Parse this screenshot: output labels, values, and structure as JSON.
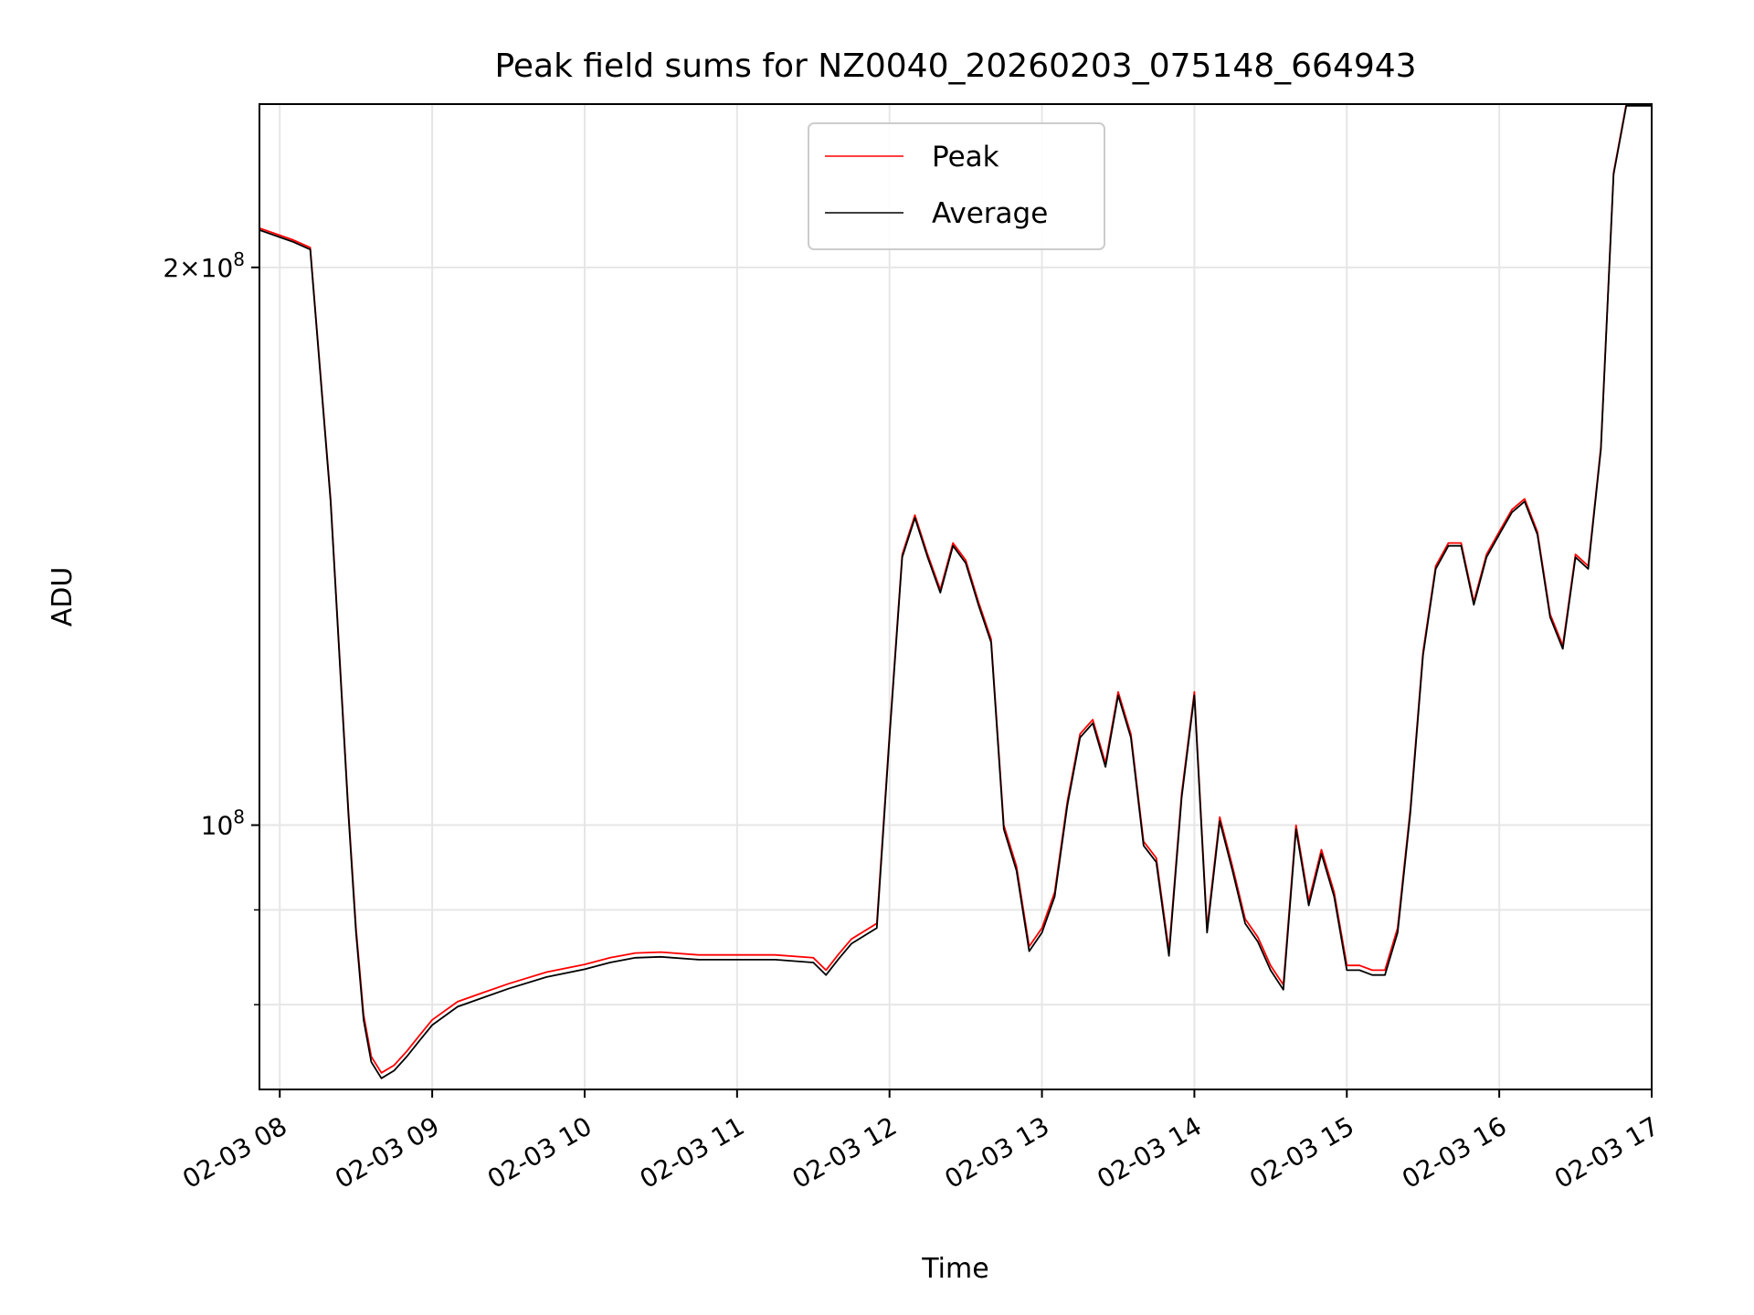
{
  "chart_data": {
    "type": "line",
    "title": "Peak field sums for NZ0040_20260203_075148_664943",
    "xlabel": "Time",
    "ylabel": "ADU",
    "y_scale": "log",
    "ylim": [
      72000000,
      245000000
    ],
    "xlim": [
      "02-03 07:52",
      "02-03 17:00"
    ],
    "x_ticks": [
      "02-03 08",
      "02-03 09",
      "02-03 10",
      "02-03 11",
      "02-03 12",
      "02-03 13",
      "02-03 14",
      "02-03 15",
      "02-03 16",
      "02-03 17"
    ],
    "y_tick_labels": [
      {
        "value": 100000000,
        "label": "10^8"
      },
      {
        "value": 200000000,
        "label": "2×10^8"
      }
    ],
    "y_minor_ticks": [
      80000000,
      90000000
    ],
    "grid": true,
    "legend_position": "upper center",
    "x": [
      "07:52",
      "08:05",
      "08:12",
      "08:20",
      "08:27",
      "08:30",
      "08:33",
      "08:36",
      "08:40",
      "08:45",
      "08:50",
      "08:55",
      "09:00",
      "09:10",
      "09:20",
      "09:30",
      "09:45",
      "10:00",
      "10:10",
      "10:20",
      "10:30",
      "10:45",
      "11:00",
      "11:15",
      "11:30",
      "11:35",
      "11:40",
      "11:45",
      "11:55",
      "12:00",
      "12:05",
      "12:10",
      "12:15",
      "12:20",
      "12:25",
      "12:30",
      "12:35",
      "12:40",
      "12:45",
      "12:50",
      "12:55",
      "13:00",
      "13:05",
      "13:10",
      "13:15",
      "13:20",
      "13:25",
      "13:30",
      "13:35",
      "13:40",
      "13:45",
      "13:50",
      "13:55",
      "14:00",
      "14:05",
      "14:10",
      "14:15",
      "14:20",
      "14:25",
      "14:30",
      "14:35",
      "14:40",
      "14:45",
      "14:50",
      "14:55",
      "15:00",
      "15:05",
      "15:10",
      "15:15",
      "15:20",
      "15:25",
      "15:30",
      "15:35",
      "15:40",
      "15:45",
      "15:50",
      "15:55",
      "16:00",
      "16:05",
      "16:10",
      "16:15",
      "16:20",
      "16:25",
      "16:30",
      "16:35",
      "16:40",
      "16:45",
      "16:50",
      "16:55",
      "17:00"
    ],
    "series": [
      {
        "name": "Peak",
        "color": "#ff0000",
        "values": [
          210000000,
          207000000,
          205000000,
          150000000,
          102000000,
          88000000,
          79000000,
          75000000,
          73500000,
          74200000,
          75500000,
          77000000,
          78500000,
          80300000,
          81200000,
          82100000,
          83300000,
          84100000,
          84800000,
          85300000,
          85400000,
          85100000,
          85100000,
          85100000,
          84800000,
          83500000,
          85200000,
          86800000,
          88500000,
          112000000,
          140000000,
          147000000,
          140000000,
          134000000,
          142000000,
          139000000,
          132000000,
          126000000,
          100000000,
          95000000,
          86000000,
          88000000,
          92000000,
          103000000,
          112000000,
          114000000,
          108000000,
          118000000,
          112000000,
          98000000,
          96000000,
          85500000,
          104000000,
          118000000,
          88000000,
          101000000,
          95000000,
          89000000,
          87000000,
          84000000,
          82000000,
          100000000,
          91000000,
          97000000,
          92000000,
          84000000,
          84000000,
          83500000,
          83500000,
          88000000,
          102000000,
          124000000,
          138000000,
          142000000,
          142000000,
          132000000,
          140000000,
          144000000,
          148000000,
          150000000,
          144000000,
          130000000,
          125000000,
          140000000,
          138000000,
          160000000,
          225000000,
          245000000,
          245000000,
          245000000
        ]
      },
      {
        "name": "Average",
        "color": "#000000",
        "values": [
          209500000,
          206500000,
          204500000,
          149500000,
          101500000,
          87500000,
          78500000,
          74500000,
          73000000,
          73700000,
          75000000,
          76500000,
          78000000,
          79800000,
          80700000,
          81600000,
          82800000,
          83600000,
          84300000,
          84800000,
          84900000,
          84600000,
          84600000,
          84600000,
          84300000,
          83000000,
          84700000,
          86300000,
          88000000,
          111500000,
          139500000,
          146500000,
          139500000,
          133500000,
          141500000,
          138500000,
          131500000,
          125500000,
          99500000,
          94500000,
          85500000,
          87500000,
          91500000,
          102500000,
          111500000,
          113500000,
          107500000,
          117500000,
          111500000,
          97500000,
          95500000,
          85000000,
          103500000,
          117500000,
          87500000,
          100500000,
          94500000,
          88500000,
          86500000,
          83500000,
          81500000,
          99500000,
          90500000,
          96500000,
          91500000,
          83500000,
          83500000,
          83000000,
          83000000,
          87500000,
          101500000,
          123500000,
          137500000,
          141500000,
          141500000,
          131500000,
          139500000,
          143500000,
          147500000,
          149500000,
          143500000,
          129500000,
          124500000,
          139500000,
          137500000,
          159500000,
          224500000,
          244500000,
          244500000,
          244500000
        ]
      }
    ]
  }
}
